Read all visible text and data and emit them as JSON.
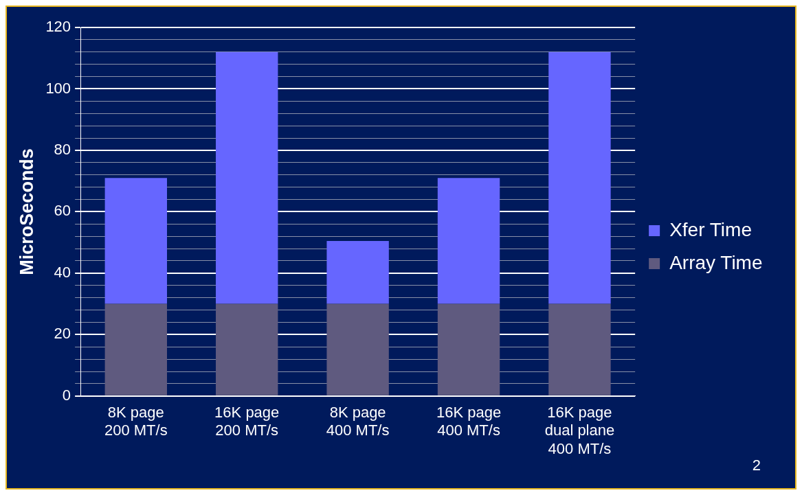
{
  "chart_data": {
    "type": "bar",
    "stacked": true,
    "ylabel": "MicroSeconds",
    "categories": [
      "8K page\n200 MT/s",
      "16K page\n200 MT/s",
      "8K page\n400 MT/s",
      "16K page\n400 MT/s",
      "16K page\ndual plane\n400 MT/s"
    ],
    "series": [
      {
        "name": "Array Time",
        "color": "#5f5a7f",
        "values": [
          30,
          30,
          30,
          30,
          30
        ]
      },
      {
        "name": "Xfer Time",
        "color": "#6666ff",
        "values": [
          41,
          82,
          20.5,
          41,
          82
        ]
      }
    ],
    "ylim": [
      0,
      120
    ],
    "yticks": [
      0,
      {
        "value": 4,
        "label": null
      },
      {
        "value": 8,
        "label": null
      },
      {
        "value": 12,
        "label": null
      },
      {
        "value": 16,
        "label": null
      },
      20,
      {
        "value": 24,
        "label": null
      },
      {
        "value": 28,
        "label": null
      },
      {
        "value": 32,
        "label": null
      },
      {
        "value": 36,
        "label": null
      },
      40,
      {
        "value": 44,
        "label": null
      },
      {
        "value": 48,
        "label": null
      },
      {
        "value": 52,
        "label": null
      },
      {
        "value": 56,
        "label": null
      },
      60,
      {
        "value": 64,
        "label": null
      },
      {
        "value": 68,
        "label": null
      },
      {
        "value": 72,
        "label": null
      },
      {
        "value": 76,
        "label": null
      },
      80,
      {
        "value": 84,
        "label": null
      },
      {
        "value": 88,
        "label": null
      },
      {
        "value": 92,
        "label": null
      },
      {
        "value": 96,
        "label": null
      },
      100,
      {
        "value": 104,
        "label": null
      },
      {
        "value": 108,
        "label": null
      },
      {
        "value": 112,
        "label": null
      },
      {
        "value": 116,
        "label": null
      },
      120
    ],
    "grid": "y",
    "legend": "right",
    "annotations": [
      "2"
    ]
  }
}
